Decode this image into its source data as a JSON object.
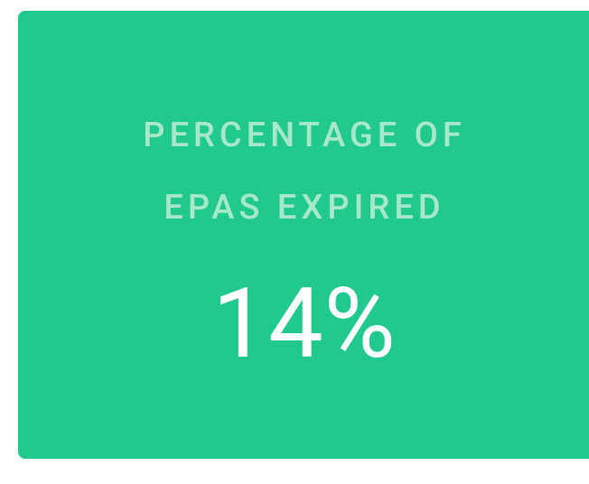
{
  "card": {
    "title_lines": [
      "PERCENTAGE OF",
      "EPAS EXPIRED"
    ],
    "value": "14%"
  }
}
